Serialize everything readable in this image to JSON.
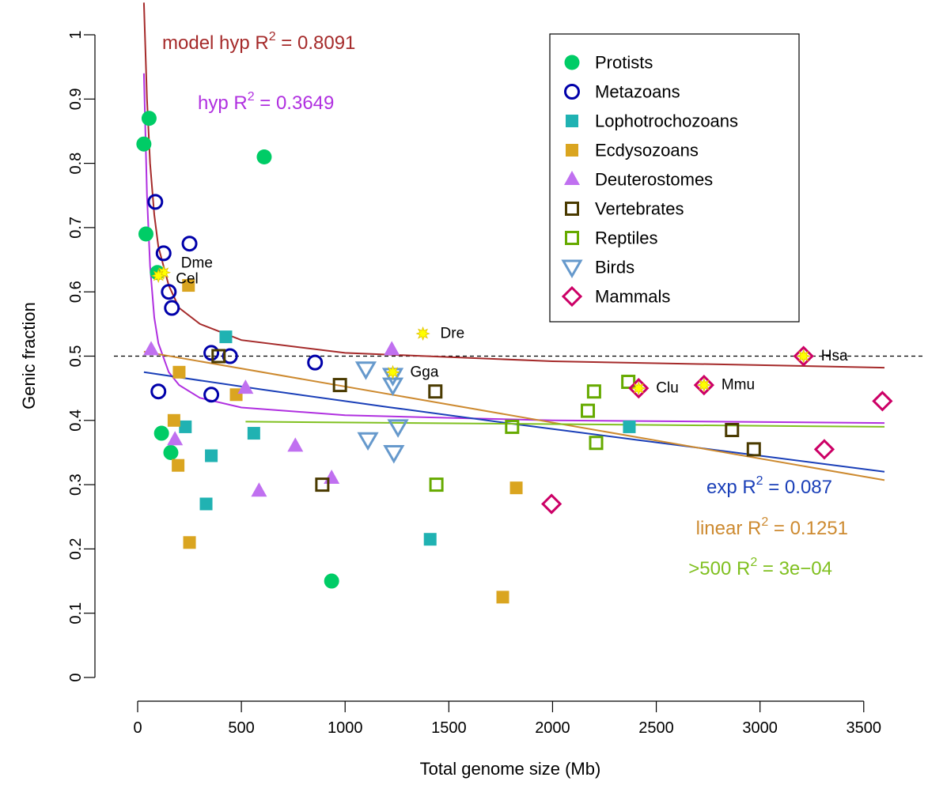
{
  "chart_data": {
    "type": "scatter",
    "xlabel": "Total genome size (Mb)",
    "ylabel": "Genic fraction",
    "xlim": [
      0,
      3600
    ],
    "ylim": [
      0,
      1
    ],
    "xticks": [
      0,
      500,
      1000,
      1500,
      2000,
      2500,
      3000,
      3500
    ],
    "yticks": [
      0,
      0.1,
      0.2,
      0.3,
      0.4,
      0.5,
      0.6,
      0.7,
      0.8,
      0.9,
      1
    ],
    "grid": false,
    "reference_line": 0.5,
    "legend_position": "top-right",
    "series": [
      {
        "name": "Protists",
        "marker": "filled-circle",
        "color": "#00CC66",
        "points": [
          [
            30,
            0.83
          ],
          [
            55,
            0.87
          ],
          [
            40,
            0.69
          ],
          [
            115,
            0.38
          ],
          [
            160,
            0.35
          ],
          [
            610,
            0.81
          ],
          [
            935,
            0.15
          ],
          [
            95,
            0.63
          ]
        ]
      },
      {
        "name": "Metazoans",
        "marker": "open-circle",
        "color": "#0000AA",
        "points": [
          [
            85,
            0.74
          ],
          [
            125,
            0.66
          ],
          [
            250,
            0.675
          ],
          [
            150,
            0.6
          ],
          [
            165,
            0.575
          ],
          [
            355,
            0.505
          ],
          [
            445,
            0.5
          ],
          [
            855,
            0.49
          ],
          [
            100,
            0.445
          ],
          [
            355,
            0.44
          ]
        ]
      },
      {
        "name": "Lophotrochozoans",
        "marker": "filled-square",
        "color": "#20B2B2",
        "points": [
          [
            425,
            0.53
          ],
          [
            230,
            0.39
          ],
          [
            355,
            0.345
          ],
          [
            330,
            0.27
          ],
          [
            560,
            0.38
          ],
          [
            1410,
            0.215
          ],
          [
            2370,
            0.39
          ]
        ]
      },
      {
        "name": "Ecdysozoans",
        "marker": "filled-square",
        "color": "#DAA520",
        "points": [
          [
            245,
            0.61
          ],
          [
            200,
            0.475
          ],
          [
            475,
            0.44
          ],
          [
            175,
            0.4
          ],
          [
            195,
            0.33
          ],
          [
            250,
            0.21
          ],
          [
            1825,
            0.295
          ],
          [
            1760,
            0.125
          ]
        ]
      },
      {
        "name": "Deuterostomes",
        "marker": "filled-triangle",
        "color": "#C070F0",
        "points": [
          [
            65,
            0.51
          ],
          [
            180,
            0.37
          ],
          [
            520,
            0.45
          ],
          [
            585,
            0.29
          ],
          [
            760,
            0.36
          ],
          [
            935,
            0.31
          ],
          [
            1225,
            0.51
          ]
        ]
      },
      {
        "name": "Vertebrates",
        "marker": "open-square",
        "color": "#4A3A00",
        "points": [
          [
            390,
            0.5
          ],
          [
            975,
            0.455
          ],
          [
            1435,
            0.445
          ],
          [
            890,
            0.3
          ],
          [
            2865,
            0.385
          ],
          [
            2970,
            0.355
          ]
        ]
      },
      {
        "name": "Reptiles",
        "marker": "open-square",
        "color": "#66AA00",
        "points": [
          [
            2365,
            0.46
          ],
          [
            2200,
            0.445
          ],
          [
            2170,
            0.415
          ],
          [
            2210,
            0.365
          ],
          [
            1805,
            0.39
          ],
          [
            1440,
            0.3
          ]
        ]
      },
      {
        "name": "Birds",
        "marker": "open-triangle-down",
        "color": "#6699CC",
        "points": [
          [
            1100,
            0.48
          ],
          [
            1230,
            0.47
          ],
          [
            1230,
            0.455
          ],
          [
            1255,
            0.39
          ],
          [
            1110,
            0.37
          ],
          [
            1235,
            0.35
          ]
        ]
      },
      {
        "name": "Mammals",
        "marker": "open-diamond",
        "color": "#CC0066",
        "points": [
          [
            3210,
            0.5
          ],
          [
            2415,
            0.45
          ],
          [
            2730,
            0.455
          ],
          [
            3310,
            0.355
          ],
          [
            3590,
            0.43
          ],
          [
            1995,
            0.27
          ]
        ]
      }
    ],
    "highlighted": [
      {
        "label": "Dme",
        "x": 125,
        "y": 0.63
      },
      {
        "label": "Cel",
        "x": 100,
        "y": 0.625
      },
      {
        "label": "Dre",
        "x": 1375,
        "y": 0.535
      },
      {
        "label": "Gga",
        "x": 1230,
        "y": 0.475
      },
      {
        "label": "Clu",
        "x": 2415,
        "y": 0.45
      },
      {
        "label": "Mmu",
        "x": 2730,
        "y": 0.455
      },
      {
        "label": "Hsa",
        "x": 3210,
        "y": 0.5
      }
    ],
    "fits": [
      {
        "key": "model_hyp",
        "prefix": "model hyp",
        "r2": "0.8091",
        "color": "#A52A2A",
        "curve": [
          [
            30,
            1.05
          ],
          [
            45,
            0.9
          ],
          [
            60,
            0.8
          ],
          [
            80,
            0.72
          ],
          [
            100,
            0.67
          ],
          [
            150,
            0.61
          ],
          [
            200,
            0.575
          ],
          [
            300,
            0.55
          ],
          [
            500,
            0.525
          ],
          [
            1000,
            0.505
          ],
          [
            2000,
            0.492
          ],
          [
            3000,
            0.486
          ],
          [
            3600,
            0.482
          ]
        ]
      },
      {
        "key": "hyp",
        "prefix": "hyp",
        "r2": "0.3649",
        "color": "#B030E0",
        "curve": [
          [
            30,
            0.94
          ],
          [
            45,
            0.75
          ],
          [
            60,
            0.64
          ],
          [
            80,
            0.56
          ],
          [
            100,
            0.52
          ],
          [
            150,
            0.475
          ],
          [
            200,
            0.455
          ],
          [
            300,
            0.435
          ],
          [
            500,
            0.42
          ],
          [
            1000,
            0.408
          ],
          [
            2000,
            0.4
          ],
          [
            3600,
            0.396
          ]
        ]
      },
      {
        "key": "exp",
        "prefix": "exp",
        "r2": "0.087",
        "color": "#1A3FB8",
        "curve": [
          [
            30,
            0.475
          ],
          [
            600,
            0.448
          ],
          [
            1200,
            0.421
          ],
          [
            1800,
            0.395
          ],
          [
            2400,
            0.37
          ],
          [
            3000,
            0.345
          ],
          [
            3600,
            0.32
          ]
        ]
      },
      {
        "key": "linear",
        "prefix": "linear",
        "r2": "0.1251",
        "color": "#CD8A30",
        "curve": [
          [
            30,
            0.507
          ],
          [
            3600,
            0.307
          ]
        ]
      },
      {
        "key": "over500",
        "prefix": ">500",
        "r2": "3e−04",
        "color": "#80C020",
        "curve": [
          [
            520,
            0.398
          ],
          [
            3600,
            0.39
          ]
        ]
      }
    ]
  }
}
